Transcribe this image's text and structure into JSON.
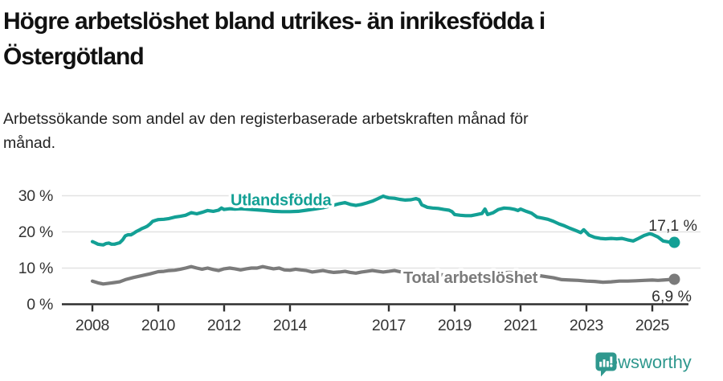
{
  "header": {
    "title_lines": [
      "Högre arbetslöshet bland utrikes- än inrikesfödda i",
      "Östergötland"
    ],
    "subtitle_lines": [
      "Arbetssökande som andel av den registerbaserade arbetskraften månad för",
      "månad."
    ]
  },
  "footer": {
    "brand": "Newsworthy"
  },
  "colors": {
    "teal": "#13a095",
    "gray": "#7b7b7b",
    "title_text": "#111111",
    "axis_text": "#333333",
    "gridline": "#e2e2e2",
    "axis_line": "#2f2f2f",
    "brand_teal": "#2f988e"
  },
  "chart_data": {
    "type": "line",
    "title": "Högre arbetslöshet bland utrikes- än inrikesfödda i Östergötland",
    "subtitle": "Arbetssökande som andel av den registerbaserade arbetskraften månad för månad.",
    "xlabel": "",
    "ylabel": "",
    "x_range": [
      2008,
      2025.67
    ],
    "ylim": [
      0,
      30
    ],
    "grid": "horizontal",
    "legend_position": "inline-labels",
    "x_ticks": [
      2008,
      2010,
      2012,
      2014,
      2017,
      2019,
      2021,
      2023,
      2025
    ],
    "y_ticks": [
      {
        "value": 0,
        "label": "0 %"
      },
      {
        "value": 10,
        "label": "10 %"
      },
      {
        "value": 20,
        "label": "20 %"
      },
      {
        "value": 30,
        "label": "30 %"
      }
    ],
    "series": [
      {
        "name": "Utlandsfödda",
        "color": "#13a095",
        "end_value": 17.1,
        "end_label": "17,1 %",
        "points": [
          [
            2008,
            17.3
          ],
          [
            2008.08,
            17
          ],
          [
            2008.17,
            16.6
          ],
          [
            2008.25,
            16.5
          ],
          [
            2008.33,
            16.4
          ],
          [
            2008.42,
            16.8
          ],
          [
            2008.5,
            16.9
          ],
          [
            2008.58,
            16.6
          ],
          [
            2008.67,
            16.6
          ],
          [
            2008.75,
            16.8
          ],
          [
            2008.83,
            17
          ],
          [
            2008.92,
            17.8
          ],
          [
            2009,
            18.9
          ],
          [
            2009.08,
            19.2
          ],
          [
            2009.17,
            19.2
          ],
          [
            2009.25,
            19.6
          ],
          [
            2009.33,
            20.1
          ],
          [
            2009.42,
            20.5
          ],
          [
            2009.5,
            20.9
          ],
          [
            2009.58,
            21.2
          ],
          [
            2009.67,
            21.6
          ],
          [
            2009.75,
            22.2
          ],
          [
            2009.83,
            22.9
          ],
          [
            2009.92,
            23.2
          ],
          [
            2010,
            23.4
          ],
          [
            2010.17,
            23.5
          ],
          [
            2010.33,
            23.7
          ],
          [
            2010.5,
            24.1
          ],
          [
            2010.67,
            24.3
          ],
          [
            2010.83,
            24.6
          ],
          [
            2011,
            25.3
          ],
          [
            2011.17,
            25
          ],
          [
            2011.33,
            25.4
          ],
          [
            2011.5,
            25.9
          ],
          [
            2011.67,
            25.7
          ],
          [
            2011.83,
            26
          ],
          [
            2011.92,
            26.6
          ],
          [
            2012,
            26.2
          ],
          [
            2012.17,
            26.4
          ],
          [
            2012.33,
            26.3
          ],
          [
            2012.5,
            26.4
          ],
          [
            2012.67,
            26.3
          ],
          [
            2012.83,
            26.2
          ],
          [
            2013,
            26.1
          ],
          [
            2013.25,
            25.9
          ],
          [
            2013.5,
            25.7
          ],
          [
            2013.75,
            25.6
          ],
          [
            2014,
            25.6
          ],
          [
            2014.25,
            25.7
          ],
          [
            2014.5,
            26
          ],
          [
            2014.75,
            26.3
          ],
          [
            2015,
            26.7
          ],
          [
            2015.25,
            27.2
          ],
          [
            2015.5,
            27.8
          ],
          [
            2015.67,
            28.1
          ],
          [
            2015.83,
            27.6
          ],
          [
            2016,
            27.3
          ],
          [
            2016.17,
            27.6
          ],
          [
            2016.33,
            28
          ],
          [
            2016.5,
            28.5
          ],
          [
            2016.67,
            29.2
          ],
          [
            2016.83,
            29.9
          ],
          [
            2016.92,
            29.6
          ],
          [
            2017,
            29.4
          ],
          [
            2017.17,
            29.3
          ],
          [
            2017.33,
            29
          ],
          [
            2017.5,
            28.8
          ],
          [
            2017.67,
            28.9
          ],
          [
            2017.83,
            29.2
          ],
          [
            2017.92,
            28.9
          ],
          [
            2018,
            27.5
          ],
          [
            2018.17,
            26.8
          ],
          [
            2018.33,
            26.6
          ],
          [
            2018.5,
            26.5
          ],
          [
            2018.67,
            26.2
          ],
          [
            2018.83,
            26
          ],
          [
            2018.92,
            25.6
          ],
          [
            2019,
            24.8
          ],
          [
            2019.17,
            24.6
          ],
          [
            2019.33,
            24.5
          ],
          [
            2019.5,
            24.5
          ],
          [
            2019.67,
            24.8
          ],
          [
            2019.83,
            25.1
          ],
          [
            2019.92,
            26.3
          ],
          [
            2020,
            24.8
          ],
          [
            2020.17,
            25.3
          ],
          [
            2020.33,
            26.2
          ],
          [
            2020.5,
            26.6
          ],
          [
            2020.67,
            26.5
          ],
          [
            2020.83,
            26.2
          ],
          [
            2020.92,
            25.9
          ],
          [
            2021,
            26.3
          ],
          [
            2021.17,
            25.7
          ],
          [
            2021.33,
            25.2
          ],
          [
            2021.5,
            24.1
          ],
          [
            2021.67,
            23.8
          ],
          [
            2021.83,
            23.5
          ],
          [
            2022,
            22.9
          ],
          [
            2022.17,
            22.2
          ],
          [
            2022.33,
            21.7
          ],
          [
            2022.5,
            21
          ],
          [
            2022.67,
            20.4
          ],
          [
            2022.83,
            19.8
          ],
          [
            2022.92,
            20.6
          ],
          [
            2023.08,
            19.1
          ],
          [
            2023.25,
            18.5
          ],
          [
            2023.42,
            18.2
          ],
          [
            2023.58,
            18.1
          ],
          [
            2023.75,
            18.2
          ],
          [
            2023.92,
            18.1
          ],
          [
            2024.08,
            18.2
          ],
          [
            2024.25,
            17.8
          ],
          [
            2024.42,
            17.5
          ],
          [
            2024.58,
            18.2
          ],
          [
            2024.75,
            19
          ],
          [
            2024.92,
            19.5
          ],
          [
            2025,
            19.3
          ],
          [
            2025.17,
            18.6
          ],
          [
            2025.33,
            17.5
          ],
          [
            2025.5,
            17.2
          ],
          [
            2025.67,
            17.1
          ]
        ]
      },
      {
        "name": "Total arbetslöshet",
        "color": "#7b7b7b",
        "end_value": 6.9,
        "end_label": "6,9 %",
        "points": [
          [
            2008,
            6.4
          ],
          [
            2008.17,
            5.9
          ],
          [
            2008.33,
            5.6
          ],
          [
            2008.5,
            5.8
          ],
          [
            2008.67,
            6
          ],
          [
            2008.83,
            6.2
          ],
          [
            2009,
            6.8
          ],
          [
            2009.25,
            7.4
          ],
          [
            2009.5,
            7.9
          ],
          [
            2009.75,
            8.4
          ],
          [
            2010,
            9
          ],
          [
            2010.17,
            9.1
          ],
          [
            2010.33,
            9.3
          ],
          [
            2010.5,
            9.4
          ],
          [
            2010.67,
            9.7
          ],
          [
            2010.83,
            10
          ],
          [
            2011,
            10.4
          ],
          [
            2011.17,
            10
          ],
          [
            2011.33,
            9.7
          ],
          [
            2011.5,
            10
          ],
          [
            2011.67,
            9.6
          ],
          [
            2011.83,
            9.3
          ],
          [
            2012,
            9.8
          ],
          [
            2012.17,
            10
          ],
          [
            2012.33,
            9.8
          ],
          [
            2012.5,
            9.5
          ],
          [
            2012.67,
            9.8
          ],
          [
            2012.83,
            10
          ],
          [
            2013,
            10
          ],
          [
            2013.17,
            10.4
          ],
          [
            2013.33,
            10.1
          ],
          [
            2013.5,
            9.8
          ],
          [
            2013.67,
            10
          ],
          [
            2013.83,
            9.5
          ],
          [
            2014,
            9.4
          ],
          [
            2014.17,
            9.7
          ],
          [
            2014.33,
            9.5
          ],
          [
            2014.5,
            9.3
          ],
          [
            2014.67,
            8.9
          ],
          [
            2014.83,
            9.1
          ],
          [
            2015,
            9.3
          ],
          [
            2015.17,
            9
          ],
          [
            2015.33,
            8.8
          ],
          [
            2015.5,
            8.9
          ],
          [
            2015.67,
            9.1
          ],
          [
            2015.83,
            8.8
          ],
          [
            2016,
            8.6
          ],
          [
            2016.17,
            8.9
          ],
          [
            2016.33,
            9.1
          ],
          [
            2016.5,
            9.3
          ],
          [
            2016.67,
            9.1
          ],
          [
            2016.83,
            8.9
          ],
          [
            2017,
            9.1
          ],
          [
            2017.17,
            9.3
          ],
          [
            2017.33,
            9
          ],
          [
            2017.5,
            8.8
          ],
          [
            2017.75,
            8.5
          ],
          [
            2018,
            8.4
          ],
          [
            2018.5,
            8.2
          ],
          [
            2019,
            7.9
          ],
          [
            2019.5,
            7.7
          ],
          [
            2020,
            8.1
          ],
          [
            2020.33,
            8.6
          ],
          [
            2020.67,
            8.8
          ],
          [
            2021,
            8.5
          ],
          [
            2021.5,
            8
          ],
          [
            2022,
            7.3
          ],
          [
            2022.25,
            6.8
          ],
          [
            2022.5,
            6.7
          ],
          [
            2022.75,
            6.6
          ],
          [
            2023,
            6.4
          ],
          [
            2023.25,
            6.3
          ],
          [
            2023.5,
            6.1
          ],
          [
            2023.75,
            6.2
          ],
          [
            2024,
            6.4
          ],
          [
            2024.25,
            6.4
          ],
          [
            2024.5,
            6.5
          ],
          [
            2024.75,
            6.6
          ],
          [
            2025,
            6.7
          ],
          [
            2025.17,
            6.6
          ],
          [
            2025.33,
            6.7
          ],
          [
            2025.5,
            6.8
          ],
          [
            2025.67,
            6.9
          ]
        ]
      }
    ]
  }
}
